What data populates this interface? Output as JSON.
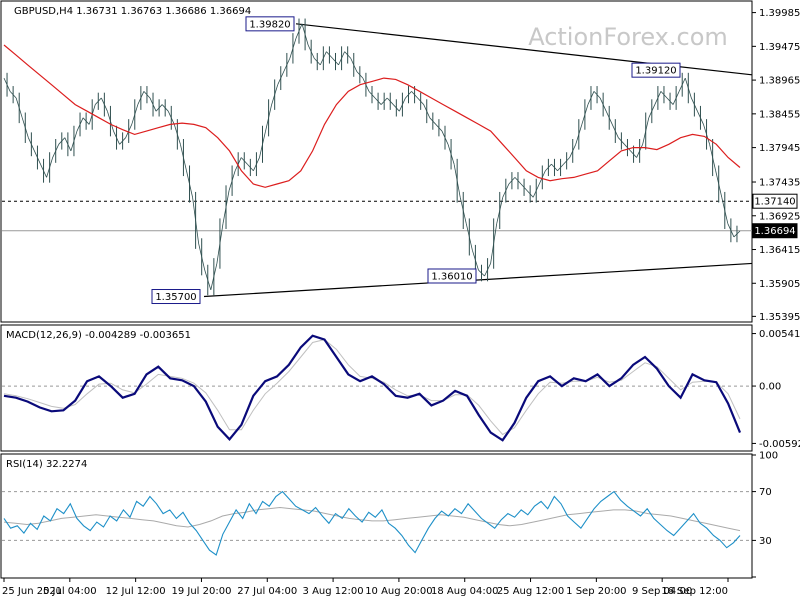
{
  "chart_data": {
    "type": "line",
    "watermark": "ActionForex.com",
    "main": {
      "header": "GBPUSD,H4  1.36731 1.36763 1.36686 1.36694",
      "ylim": [
        1.3533,
        1.4015
      ],
      "yticks": [
        1.354,
        1.359,
        1.3641,
        1.3692,
        1.3743,
        1.3795,
        1.3846,
        1.3897,
        1.3948,
        1.3999
      ],
      "ytick_labels": [
        "1.35395",
        "1.35905",
        "1.36415",
        "1.36925",
        "1.37435",
        "1.37945",
        "1.38455",
        "1.38965",
        "1.39475",
        "1.39985"
      ],
      "price": [
        1.39,
        1.388,
        1.387,
        1.384,
        1.381,
        1.379,
        1.377,
        1.375,
        1.378,
        1.38,
        1.381,
        1.379,
        1.382,
        1.384,
        1.383,
        1.386,
        1.387,
        1.385,
        1.382,
        1.38,
        1.381,
        1.383,
        1.386,
        1.388,
        1.387,
        1.385,
        1.386,
        1.385,
        1.383,
        1.38,
        1.376,
        1.372,
        1.365,
        1.361,
        1.358,
        1.362,
        1.368,
        1.373,
        1.376,
        1.378,
        1.377,
        1.376,
        1.378,
        1.382,
        1.386,
        1.389,
        1.391,
        1.393,
        1.396,
        1.3982,
        1.395,
        1.393,
        1.392,
        1.394,
        1.393,
        1.392,
        1.394,
        1.393,
        1.391,
        1.39,
        1.388,
        1.387,
        1.386,
        1.387,
        1.386,
        1.385,
        1.387,
        1.388,
        1.387,
        1.386,
        1.384,
        1.383,
        1.382,
        1.38,
        1.377,
        1.372,
        1.368,
        1.364,
        1.361,
        1.3601,
        1.362,
        1.368,
        1.372,
        1.374,
        1.375,
        1.374,
        1.373,
        1.372,
        1.374,
        1.376,
        1.377,
        1.376,
        1.377,
        1.378,
        1.38,
        1.383,
        1.386,
        1.388,
        1.387,
        1.385,
        1.383,
        1.381,
        1.38,
        1.379,
        1.378,
        1.38,
        1.384,
        1.386,
        1.388,
        1.387,
        1.386,
        1.388,
        1.39,
        1.387,
        1.385,
        1.383,
        1.38,
        1.376,
        1.372,
        1.368,
        1.366,
        1.3669
      ],
      "ma": [
        1.395,
        1.3935,
        1.392,
        1.3905,
        1.389,
        1.3875,
        1.386,
        1.385,
        1.384,
        1.383,
        1.3822,
        1.3815,
        1.382,
        1.3825,
        1.383,
        1.3832,
        1.383,
        1.3825,
        1.381,
        1.379,
        1.376,
        1.374,
        1.3735,
        1.374,
        1.3745,
        1.376,
        1.379,
        1.383,
        1.386,
        1.388,
        1.389,
        1.3895,
        1.39,
        1.3898,
        1.389,
        1.388,
        1.387,
        1.386,
        1.385,
        1.384,
        1.383,
        1.382,
        1.38,
        1.378,
        1.376,
        1.375,
        1.3745,
        1.3748,
        1.375,
        1.3755,
        1.376,
        1.3775,
        1.379,
        1.3795,
        1.3795,
        1.3792,
        1.38,
        1.381,
        1.3815,
        1.3812,
        1.38,
        1.378,
        1.3765
      ],
      "levels": [
        {
          "value": 1.3714,
          "label": "1.37140"
        },
        {
          "value": 1.36694,
          "label": "1.36694"
        }
      ],
      "callouts": [
        {
          "label": "1.39820",
          "value": 1.3982
        },
        {
          "label": "1.39120",
          "value": 1.3912
        },
        {
          "label": "1.36010",
          "value": 1.3601
        },
        {
          "label": "1.35700",
          "value": 1.357
        }
      ],
      "trendlines": [
        {
          "from": 1.3982,
          "to": 1.3905
        },
        {
          "from": 1.357,
          "to": 1.362
        }
      ]
    },
    "macd": {
      "header": "MACD(12,26,9) -0.004289 -0.003651",
      "ylim": [
        -0.0066,
        0.0062
      ],
      "ytick_labels": [
        {
          "label": "0.005419",
          "value": 0.005419
        },
        {
          "label": "0.00",
          "value": 0.0
        },
        {
          "label": "-0.005921",
          "value": -0.005921
        }
      ],
      "macd": [
        -0.001,
        -0.0012,
        -0.0016,
        -0.0022,
        -0.0026,
        -0.0025,
        -0.0015,
        0.0005,
        0.001,
        0.0,
        -0.0012,
        -0.0008,
        0.0012,
        0.002,
        0.0008,
        0.0006,
        0.0,
        -0.0016,
        -0.0042,
        -0.0055,
        -0.004,
        -0.001,
        0.0005,
        0.001,
        0.0022,
        0.004,
        0.0052,
        0.0048,
        0.003,
        0.0012,
        0.0005,
        0.001,
        0.0002,
        -0.001,
        -0.0012,
        -0.0008,
        -0.002,
        -0.0015,
        -0.0005,
        -0.001,
        -0.003,
        -0.0048,
        -0.0056,
        -0.0038,
        -0.0012,
        0.0005,
        0.001,
        0.0,
        0.0008,
        0.0005,
        0.0012,
        0.0,
        0.0008,
        0.0022,
        0.003,
        0.0018,
        0.0,
        -0.0012,
        0.0012,
        0.0006,
        0.0004,
        -0.0018,
        -0.0048
      ],
      "signal": [
        -0.0008,
        -0.001,
        -0.0013,
        -0.0017,
        -0.0021,
        -0.0023,
        -0.0019,
        -0.0008,
        0.0002,
        0.0003,
        -0.0004,
        -0.0007,
        0.0002,
        0.0012,
        0.001,
        0.0008,
        0.0003,
        -0.0007,
        -0.0025,
        -0.0045,
        -0.0045,
        -0.0025,
        -0.0008,
        0.0003,
        0.0015,
        0.003,
        0.0045,
        0.0048,
        0.0038,
        0.0022,
        0.001,
        0.0008,
        0.0004,
        -0.0004,
        -0.001,
        -0.0009,
        -0.0015,
        -0.0015,
        -0.0009,
        -0.0009,
        -0.002,
        -0.0036,
        -0.005,
        -0.0043,
        -0.0025,
        -0.0008,
        0.0004,
        0.0003,
        0.0005,
        0.0005,
        0.0009,
        0.0004,
        0.0006,
        0.0015,
        0.0024,
        0.002,
        0.0008,
        -0.0004,
        0.0004,
        0.0005,
        0.0004,
        -0.0008,
        -0.0034
      ]
    },
    "rsi": {
      "header": "RSI(14) 32.2274",
      "ylim": [
        0,
        100
      ],
      "levels": [
        70,
        30
      ],
      "ytick_labels": [
        {
          "label": "100",
          "value": 100
        },
        {
          "label": "70",
          "value": 70
        },
        {
          "label": "30",
          "value": 30
        },
        {
          "label": "0",
          "value": 0
        }
      ],
      "values": [
        48,
        40,
        42,
        36,
        44,
        39,
        50,
        46,
        56,
        52,
        60,
        48,
        42,
        38,
        45,
        41,
        50,
        46,
        55,
        49,
        62,
        58,
        66,
        60,
        52,
        55,
        48,
        53,
        44,
        38,
        30,
        22,
        18,
        35,
        45,
        55,
        48,
        60,
        52,
        62,
        58,
        66,
        70,
        64,
        58,
        55,
        52,
        57,
        50,
        44,
        52,
        48,
        56,
        50,
        45,
        53,
        49,
        55,
        44,
        40,
        34,
        26,
        20,
        30,
        40,
        48,
        54,
        50,
        56,
        52,
        60,
        54,
        48,
        44,
        40,
        47,
        52,
        49,
        55,
        51,
        58,
        62,
        56,
        66,
        60,
        50,
        45,
        40,
        48,
        56,
        62,
        66,
        70,
        63,
        58,
        54,
        50,
        56,
        48,
        43,
        38,
        34,
        40,
        46,
        52,
        44,
        40,
        34,
        30,
        24,
        28,
        34
      ],
      "guide": [
        45,
        44,
        43,
        44,
        46,
        48,
        49,
        50,
        51,
        50,
        49,
        48,
        47,
        46,
        44,
        42,
        41,
        43,
        46,
        50,
        52,
        53,
        55,
        56,
        57,
        56,
        55,
        54,
        52,
        50,
        48,
        47,
        46,
        46,
        47,
        48,
        49,
        50,
        51,
        50,
        49,
        47,
        45,
        43,
        42,
        43,
        45,
        47,
        49,
        51,
        52,
        53,
        54,
        55,
        55,
        54,
        52,
        51,
        50,
        48,
        46,
        44,
        42,
        40,
        38
      ]
    },
    "xtick_labels": [
      "25 Jun 2021",
      "5 Jul 04:00",
      "12 Jul 12:00",
      "19 Jul 20:00",
      "27 Jul 04:00",
      "3 Aug 12:00",
      "10 Aug 20:00",
      "18 Aug 04:00",
      "25 Aug 12:00",
      "1 Sep 20:00",
      "9 Sep 04:00",
      "16 Sep 12:00"
    ],
    "colors": {
      "price": "#2f4f4f",
      "ma": "#dc1e1e",
      "trend": "#000000",
      "macd": "#0a0a7a",
      "signal": "#c0c0c0",
      "rsi": "#1e90c8",
      "rsi_guide": "#aaaaaa",
      "watermark": "#c8c8c8"
    }
  }
}
